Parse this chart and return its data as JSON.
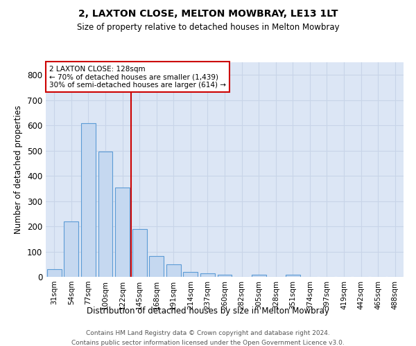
{
  "title": "2, LAXTON CLOSE, MELTON MOWBRAY, LE13 1LT",
  "subtitle": "Size of property relative to detached houses in Melton Mowbray",
  "xlabel": "Distribution of detached houses by size in Melton Mowbray",
  "ylabel": "Number of detached properties",
  "bar_labels": [
    "31sqm",
    "54sqm",
    "77sqm",
    "100sqm",
    "122sqm",
    "145sqm",
    "168sqm",
    "191sqm",
    "214sqm",
    "237sqm",
    "260sqm",
    "282sqm",
    "305sqm",
    "328sqm",
    "351sqm",
    "374sqm",
    "397sqm",
    "419sqm",
    "442sqm",
    "465sqm",
    "488sqm"
  ],
  "bar_values": [
    30,
    218,
    610,
    495,
    353,
    188,
    83,
    50,
    20,
    15,
    8,
    0,
    8,
    0,
    8,
    0,
    0,
    0,
    0,
    0,
    0
  ],
  "bar_color": "#c5d8f0",
  "bar_edge_color": "#5b9bd5",
  "grid_color": "#c8d4e8",
  "background_color": "#dce6f5",
  "vline_color": "#cc0000",
  "annotation_text_line1": "2 LAXTON CLOSE: 128sqm",
  "annotation_text_line2": "← 70% of detached houses are smaller (1,439)",
  "annotation_text_line3": "30% of semi-detached houses are larger (614) →",
  "ylim": [
    0,
    850
  ],
  "yticks": [
    0,
    100,
    200,
    300,
    400,
    500,
    600,
    700,
    800
  ],
  "vline_x": 4.5,
  "footer_line1": "Contains HM Land Registry data © Crown copyright and database right 2024.",
  "footer_line2": "Contains public sector information licensed under the Open Government Licence v3.0."
}
